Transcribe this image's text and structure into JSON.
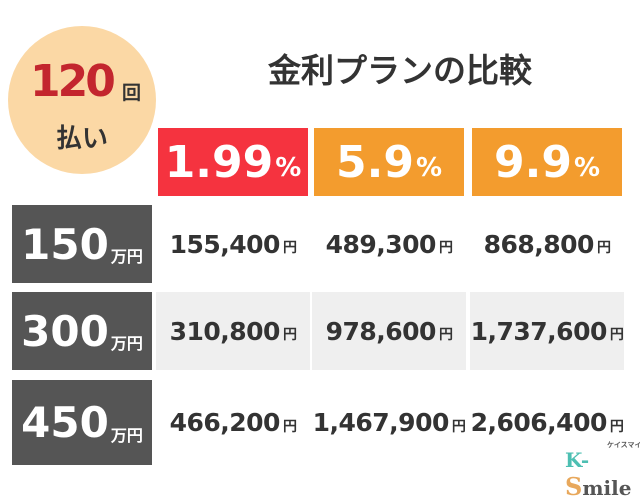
{
  "badge": {
    "count": "120",
    "unit": "回",
    "suffix": "払い"
  },
  "title": "金利プランの比較",
  "rates": [
    {
      "value": "1.99",
      "unit": "%",
      "color": "#f5333f"
    },
    {
      "value": "5.9",
      "unit": "%",
      "color": "#f39c2e"
    },
    {
      "value": "9.9",
      "unit": "%",
      "color": "#f39c2e"
    }
  ],
  "rows": [
    {
      "amount": "150",
      "unit": "万円",
      "values": [
        "155,400",
        "489,300",
        "868,800"
      ]
    },
    {
      "amount": "300",
      "unit": "万円",
      "values": [
        "310,800",
        "978,600",
        "1,737,600"
      ]
    },
    {
      "amount": "450",
      "unit": "万円",
      "values": [
        "466,200",
        "1,467,900",
        "2,606,400"
      ]
    }
  ],
  "currency": "円",
  "logo": {
    "text": "K-Smile",
    "kana": "ケイスマイル"
  }
}
